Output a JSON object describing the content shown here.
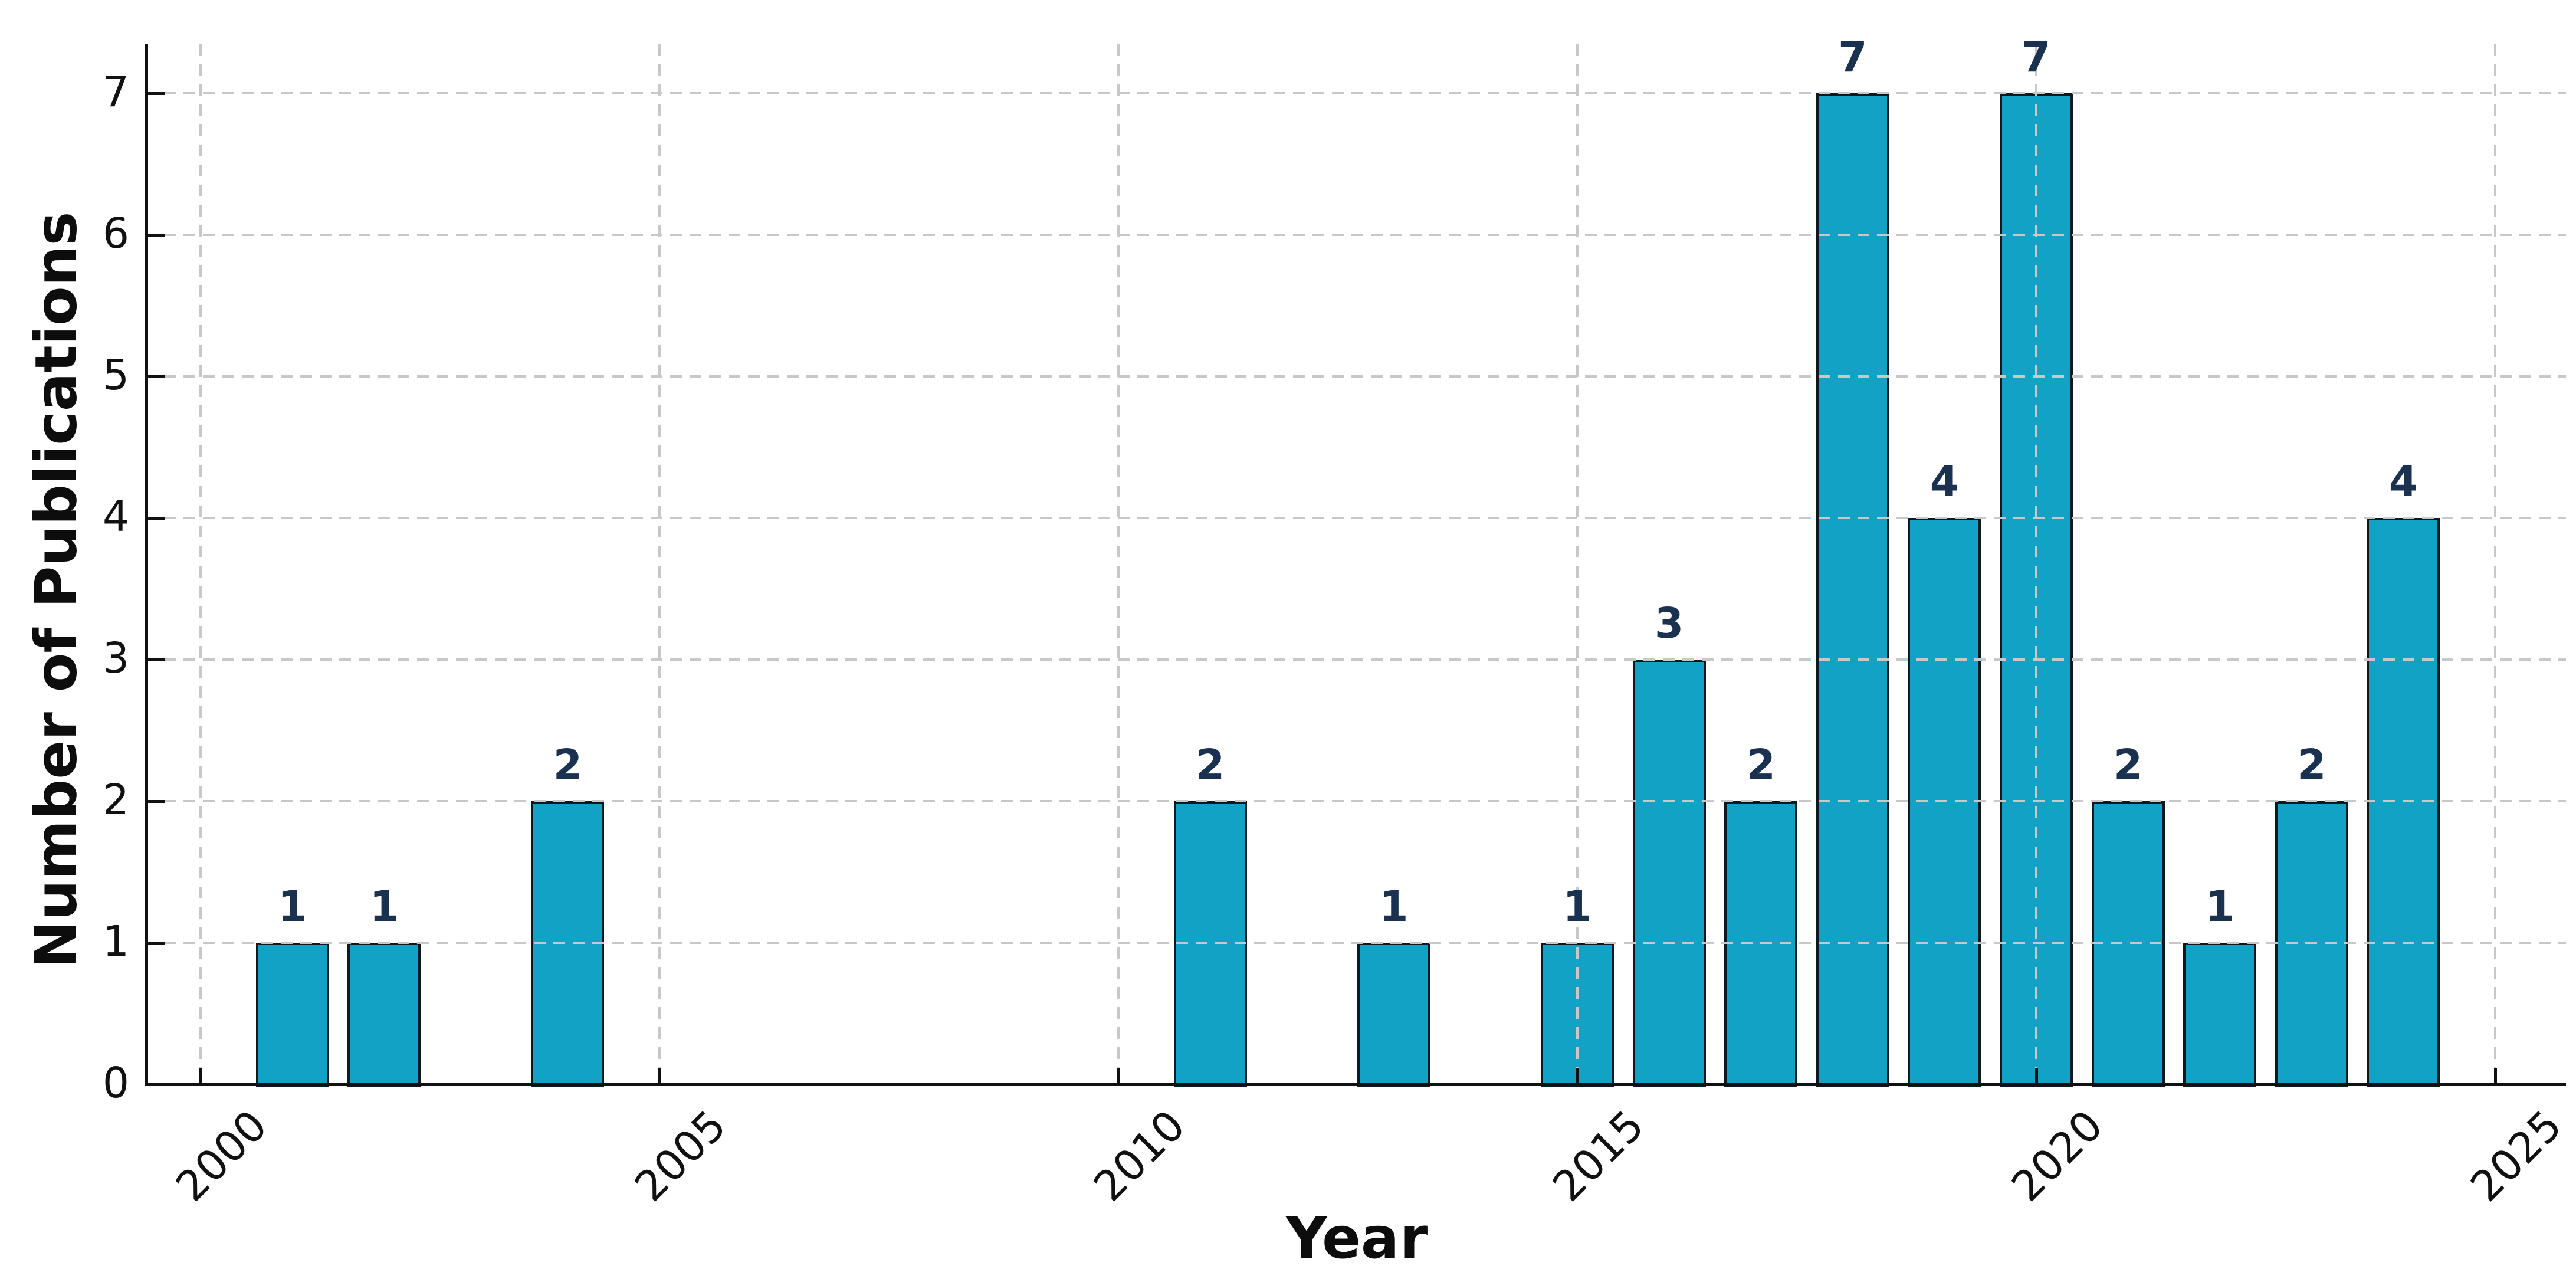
{
  "chart_data": {
    "type": "bar",
    "title": "",
    "xlabel": "Year",
    "ylabel": "Number of Publications",
    "x": [
      2001,
      2002,
      2004,
      2011,
      2013,
      2015,
      2016,
      2017,
      2018,
      2019,
      2020,
      2021,
      2022,
      2023,
      2024
    ],
    "values": [
      1,
      1,
      2,
      2,
      1,
      1,
      3,
      2,
      7,
      4,
      7,
      2,
      1,
      2,
      4
    ],
    "data_labels": [
      "1",
      "1",
      "2",
      "2",
      "1",
      "1",
      "3",
      "2",
      "7",
      "4",
      "7",
      "2",
      "1",
      "2",
      "4"
    ],
    "x_ticks": [
      2000,
      2005,
      2010,
      2015,
      2020,
      2025
    ],
    "x_tick_labels": [
      "2000",
      "2005",
      "2010",
      "2015",
      "2020",
      "2025"
    ],
    "y_ticks": [
      0,
      1,
      2,
      3,
      4,
      5,
      6,
      7
    ],
    "y_tick_labels": [
      "0",
      "1",
      "2",
      "3",
      "4",
      "5",
      "6",
      "7"
    ],
    "xlim": [
      1999.4,
      2025.8
    ],
    "ylim": [
      0,
      7.35
    ],
    "grid": "both-dashed",
    "legend": null,
    "bar_relative_width": 0.8
  },
  "colors": {
    "background": "#ffffff",
    "bar_fill": "#12a2c6",
    "bar_edge": "#10181f",
    "value_label": "#1b3150",
    "tick_label": "#111111",
    "axis_title": "#0d0d0d",
    "gridline": "#c8c8c8",
    "spine": "#111111"
  }
}
